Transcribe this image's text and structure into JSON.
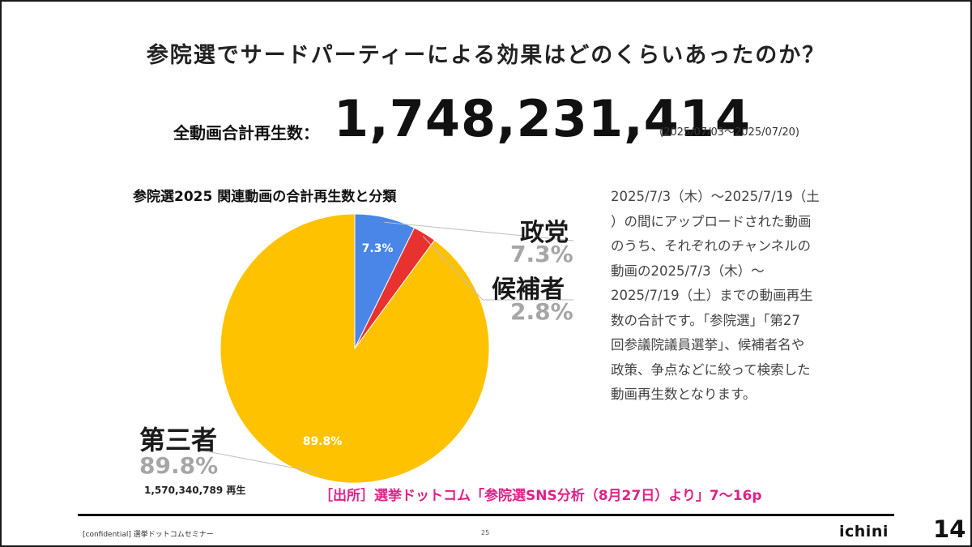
{
  "title": "参院選でサードパーティーによる効果はどのくらいあったのか？",
  "total": {
    "label": "全動画合計再生数：",
    "value": "1,748,231,414",
    "period": "(2025/07/03～2025/07/20)"
  },
  "chart_data": {
    "type": "pie",
    "title": "参院選2025 関連動画の合計再生数と分類",
    "slices": [
      {
        "name": "政党",
        "value": 7.3,
        "label": "7.3%",
        "display_pct": "7.3%",
        "color": "#4a86e8"
      },
      {
        "name": "候補者",
        "value": 2.8,
        "label": "",
        "display_pct": "2.8%",
        "color": "#e8322f"
      },
      {
        "name": "第三者",
        "value": 89.8,
        "label": "89.8%",
        "display_pct": "89.8%",
        "color": "#ffc200"
      }
    ],
    "start_angle_deg": 0
  },
  "third_party_plays": "1,570,340,789 再生",
  "description_lines": [
    "2025/7/3（木）～2025/7/19（土",
    "）の間にアップロードされた動画",
    "のうち、それぞれのチャンネルの",
    "動画の2025/7/3（木）～",
    "2025/7/19（土）までの動画再生",
    "数の合計です。「参院選」「第27",
    "回参議院議員選挙」、候補者名や",
    "政策、争点などに絞って検索した",
    "動画再生数となります。"
  ],
  "source": "［出所］選挙ドットコム「参院選SNS分析（8月27日）より」7～16p",
  "footer": {
    "left_text": "[confidential] 選挙ドットコムセミナー",
    "page": "25",
    "logo": "ichini"
  },
  "slide_number": "14"
}
